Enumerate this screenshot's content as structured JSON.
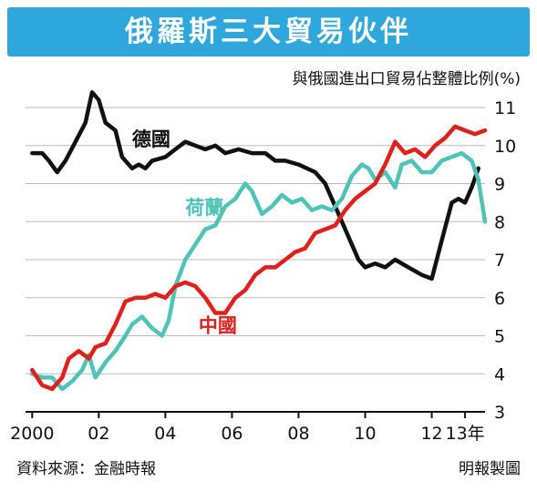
{
  "header": {
    "title": "俄羅斯三大貿易伙伴",
    "subtitle": "與俄國進出口貿易佔整體比例(%)"
  },
  "footer": {
    "source": "資料來源：金融時報",
    "credit": "明報製圖"
  },
  "colors": {
    "title_band": "#2da7dc",
    "germany": "#111111",
    "netherlands": "#4fc3b8",
    "china": "#e0201b"
  },
  "chart_data": {
    "type": "line",
    "title": "俄羅斯三大貿易伙伴",
    "subtitle": "與俄國進出口貿易佔整體比例(%)",
    "x_ticks": [
      {
        "x": 2000,
        "label": "2000"
      },
      {
        "x": 2002,
        "label": "02"
      },
      {
        "x": 2004,
        "label": "04"
      },
      {
        "x": 2006,
        "label": "06"
      },
      {
        "x": 2008,
        "label": "08"
      },
      {
        "x": 2010,
        "label": "10"
      },
      {
        "x": 2012,
        "label": "12"
      },
      {
        "x": 2013,
        "label": "13年"
      }
    ],
    "xlim": [
      1999.8,
      2013.6
    ],
    "ylim": [
      3,
      11
    ],
    "y_ticks": [
      3,
      4,
      5,
      6,
      7,
      8,
      9,
      10,
      11
    ],
    "y_axis_side": "right",
    "grid": true,
    "series": [
      {
        "name": "德國",
        "color": "#111111",
        "label_at": [
          2003.0,
          10.0
        ],
        "points": [
          [
            2000.0,
            9.8
          ],
          [
            2000.3,
            9.8
          ],
          [
            2000.5,
            9.6
          ],
          [
            2000.75,
            9.3
          ],
          [
            2001.0,
            9.6
          ],
          [
            2001.3,
            10.1
          ],
          [
            2001.6,
            10.6
          ],
          [
            2001.8,
            11.4
          ],
          [
            2002.0,
            11.2
          ],
          [
            2002.2,
            10.6
          ],
          [
            2002.5,
            10.4
          ],
          [
            2002.7,
            9.7
          ],
          [
            2003.0,
            9.4
          ],
          [
            2003.2,
            9.5
          ],
          [
            2003.4,
            9.4
          ],
          [
            2003.6,
            9.6
          ],
          [
            2004.0,
            9.7
          ],
          [
            2004.3,
            9.9
          ],
          [
            2004.6,
            10.1
          ],
          [
            2004.9,
            10.0
          ],
          [
            2005.2,
            9.9
          ],
          [
            2005.5,
            10.0
          ],
          [
            2005.8,
            9.8
          ],
          [
            2006.2,
            9.9
          ],
          [
            2006.6,
            9.8
          ],
          [
            2007.0,
            9.8
          ],
          [
            2007.3,
            9.6
          ],
          [
            2007.6,
            9.6
          ],
          [
            2008.0,
            9.5
          ],
          [
            2008.5,
            9.3
          ],
          [
            2008.8,
            9.0
          ],
          [
            2009.0,
            8.6
          ],
          [
            2009.3,
            8.0
          ],
          [
            2009.6,
            7.4
          ],
          [
            2009.8,
            7.0
          ],
          [
            2010.0,
            6.8
          ],
          [
            2010.3,
            6.9
          ],
          [
            2010.6,
            6.8
          ],
          [
            2010.9,
            7.0
          ],
          [
            2011.3,
            6.8
          ],
          [
            2011.7,
            6.6
          ],
          [
            2012.0,
            6.5
          ],
          [
            2012.3,
            7.5
          ],
          [
            2012.6,
            8.5
          ],
          [
            2012.8,
            8.6
          ],
          [
            2013.0,
            8.5
          ],
          [
            2013.2,
            8.9
          ],
          [
            2013.4,
            9.4
          ]
        ]
      },
      {
        "name": "荷蘭",
        "color": "#4fc3b8",
        "label_at": [
          2004.6,
          8.2
        ],
        "points": [
          [
            2000.0,
            4.0
          ],
          [
            2000.3,
            3.9
          ],
          [
            2000.6,
            3.9
          ],
          [
            2000.9,
            3.6
          ],
          [
            2001.2,
            3.8
          ],
          [
            2001.5,
            4.1
          ],
          [
            2001.7,
            4.5
          ],
          [
            2001.9,
            3.9
          ],
          [
            2002.2,
            4.3
          ],
          [
            2002.5,
            4.6
          ],
          [
            2002.8,
            5.0
          ],
          [
            2003.0,
            5.3
          ],
          [
            2003.3,
            5.5
          ],
          [
            2003.6,
            5.2
          ],
          [
            2003.9,
            5.0
          ],
          [
            2004.1,
            5.4
          ],
          [
            2004.3,
            6.3
          ],
          [
            2004.6,
            7.0
          ],
          [
            2004.9,
            7.4
          ],
          [
            2005.2,
            7.8
          ],
          [
            2005.5,
            7.9
          ],
          [
            2005.8,
            8.4
          ],
          [
            2006.1,
            8.6
          ],
          [
            2006.4,
            9.0
          ],
          [
            2006.6,
            8.8
          ],
          [
            2006.9,
            8.2
          ],
          [
            2007.2,
            8.4
          ],
          [
            2007.5,
            8.7
          ],
          [
            2007.8,
            8.5
          ],
          [
            2008.1,
            8.6
          ],
          [
            2008.4,
            8.3
          ],
          [
            2008.7,
            8.4
          ],
          [
            2009.0,
            8.3
          ],
          [
            2009.3,
            8.6
          ],
          [
            2009.6,
            9.2
          ],
          [
            2009.9,
            9.5
          ],
          [
            2010.1,
            9.4
          ],
          [
            2010.3,
            9.1
          ],
          [
            2010.6,
            9.3
          ],
          [
            2010.9,
            8.9
          ],
          [
            2011.1,
            9.5
          ],
          [
            2011.4,
            9.6
          ],
          [
            2011.7,
            9.3
          ],
          [
            2012.0,
            9.3
          ],
          [
            2012.3,
            9.6
          ],
          [
            2012.6,
            9.7
          ],
          [
            2012.9,
            9.8
          ],
          [
            2013.2,
            9.6
          ],
          [
            2013.4,
            9.1
          ],
          [
            2013.6,
            8.0
          ]
        ]
      },
      {
        "name": "中國",
        "color": "#e0201b",
        "label_at": [
          2005.0,
          5.1
        ],
        "points": [
          [
            2000.0,
            4.1
          ],
          [
            2000.3,
            3.7
          ],
          [
            2000.6,
            3.6
          ],
          [
            2000.9,
            3.9
          ],
          [
            2001.1,
            4.4
          ],
          [
            2001.4,
            4.6
          ],
          [
            2001.7,
            4.4
          ],
          [
            2001.9,
            4.7
          ],
          [
            2002.2,
            4.8
          ],
          [
            2002.5,
            5.3
          ],
          [
            2002.8,
            5.9
          ],
          [
            2003.1,
            6.0
          ],
          [
            2003.4,
            6.0
          ],
          [
            2003.7,
            6.1
          ],
          [
            2004.0,
            6.0
          ],
          [
            2004.3,
            6.3
          ],
          [
            2004.6,
            6.4
          ],
          [
            2004.9,
            6.3
          ],
          [
            2005.2,
            6.0
          ],
          [
            2005.5,
            5.6
          ],
          [
            2005.8,
            5.6
          ],
          [
            2006.1,
            6.0
          ],
          [
            2006.4,
            6.2
          ],
          [
            2006.7,
            6.6
          ],
          [
            2007.0,
            6.8
          ],
          [
            2007.3,
            6.8
          ],
          [
            2007.6,
            7.0
          ],
          [
            2007.9,
            7.2
          ],
          [
            2008.2,
            7.3
          ],
          [
            2008.5,
            7.7
          ],
          [
            2008.8,
            7.8
          ],
          [
            2009.1,
            7.9
          ],
          [
            2009.4,
            8.3
          ],
          [
            2009.7,
            8.6
          ],
          [
            2010.0,
            8.8
          ],
          [
            2010.3,
            9.0
          ],
          [
            2010.6,
            9.5
          ],
          [
            2010.9,
            10.1
          ],
          [
            2011.2,
            9.8
          ],
          [
            2011.5,
            9.9
          ],
          [
            2011.8,
            9.7
          ],
          [
            2012.1,
            10.0
          ],
          [
            2012.4,
            10.2
          ],
          [
            2012.7,
            10.5
          ],
          [
            2013.0,
            10.4
          ],
          [
            2013.3,
            10.3
          ],
          [
            2013.6,
            10.4
          ]
        ]
      }
    ]
  }
}
